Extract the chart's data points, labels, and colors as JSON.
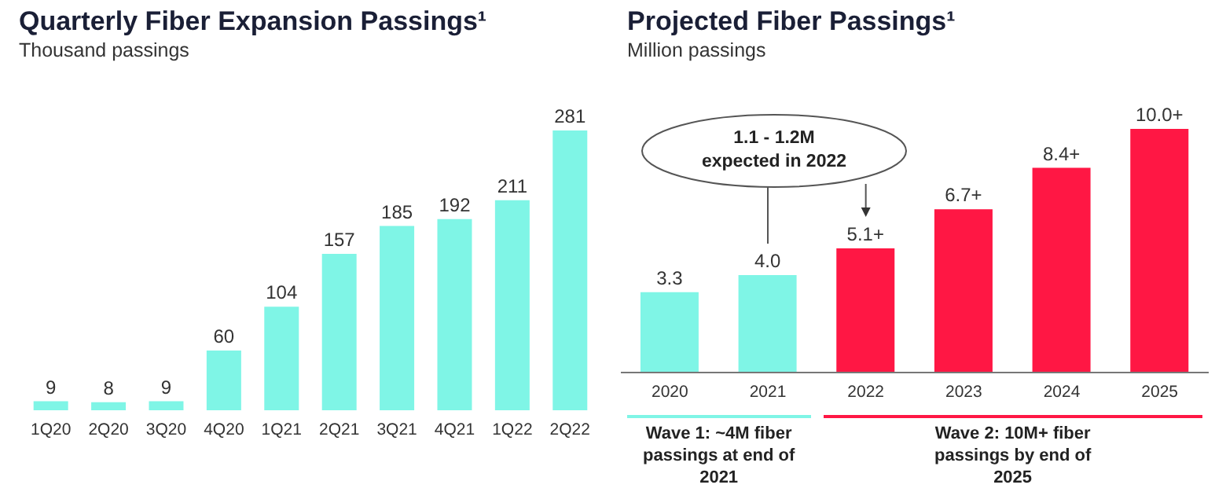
{
  "chart_data": [
    {
      "type": "bar",
      "title": "Quarterly Fiber Expansion Passings¹",
      "subtitle": "Thousand passings",
      "categories": [
        "1Q20",
        "2Q20",
        "3Q20",
        "4Q20",
        "1Q21",
        "2Q21",
        "3Q21",
        "4Q21",
        "1Q22",
        "2Q22"
      ],
      "values": [
        9,
        8,
        9,
        60,
        104,
        157,
        185,
        192,
        211,
        281
      ],
      "color": "#7ff5e6",
      "data_labels": true
    },
    {
      "type": "bar",
      "title": "Projected Fiber Passings¹",
      "subtitle": "Million passings",
      "categories": [
        "2020",
        "2021",
        "2022",
        "2023",
        "2024",
        "2025"
      ],
      "values": [
        3.3,
        4.0,
        5.1,
        6.7,
        8.4,
        10.0
      ],
      "colors": [
        "#7ff5e6",
        "#7ff5e6",
        "#ff1744",
        "#ff1744",
        "#ff1744",
        "#ff1744"
      ],
      "value_labels": [
        "3.3",
        "4.0",
        "5.1+",
        "6.7+",
        "8.4+",
        "10.0+"
      ],
      "annotations": [
        "1.1 - 1.2M expected in 2022",
        "Wave 1: ~4M fiber passings at end of 2021",
        "Wave 2: 10M+ fiber passings by end of 2025"
      ]
    }
  ]
}
